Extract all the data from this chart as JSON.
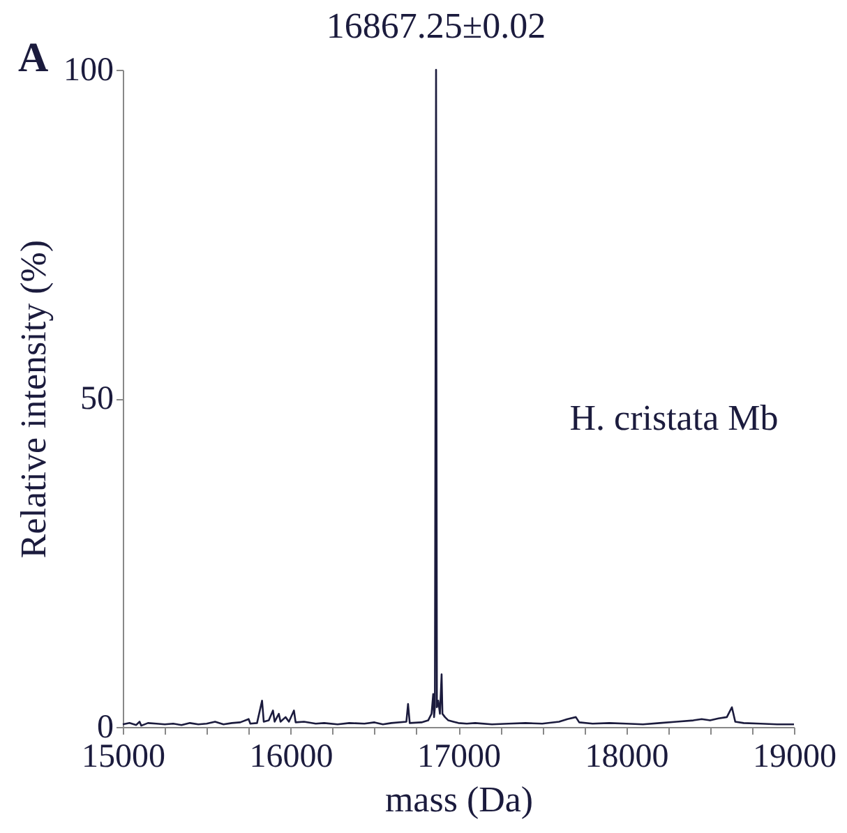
{
  "chart_data": {
    "type": "line",
    "xlabel": "mass (Da)",
    "ylabel": "Relative intensity (%)",
    "x": [
      15000,
      15040,
      15080,
      15100,
      15110,
      15150,
      15200,
      15250,
      15300,
      15350,
      15400,
      15450,
      15500,
      15550,
      15600,
      15650,
      15700,
      15750,
      15760,
      15800,
      15830,
      15840,
      15870,
      15895,
      15905,
      15930,
      15940,
      15970,
      15990,
      16020,
      16030,
      16080,
      16150,
      16200,
      16280,
      16350,
      16440,
      16500,
      16550,
      16600,
      16690,
      16700,
      16710,
      16780,
      16820,
      16840,
      16850,
      16855,
      16860,
      16867,
      16872,
      16880,
      16890,
      16900,
      16905,
      16920,
      16940,
      16970,
      17000,
      17050,
      17100,
      17200,
      17300,
      17400,
      17500,
      17600,
      17650,
      17700,
      17720,
      17800,
      17900,
      18000,
      18100,
      18200,
      18300,
      18400,
      18450,
      18500,
      18550,
      18600,
      18630,
      18650,
      18700,
      18800,
      18900,
      19000
    ],
    "series": [
      {
        "color": "#1b1b3d",
        "values": [
          0.4,
          0.6,
          0.3,
          0.8,
          0.2,
          0.6,
          0.5,
          0.4,
          0.5,
          0.3,
          0.6,
          0.4,
          0.5,
          0.8,
          0.4,
          0.6,
          0.7,
          1.2,
          0.5,
          0.6,
          4,
          0.8,
          1,
          2.5,
          0.8,
          2,
          0.8,
          1.5,
          0.8,
          2.5,
          0.7,
          0.8,
          0.5,
          0.6,
          0.4,
          0.6,
          0.5,
          0.7,
          0.4,
          0.6,
          0.8,
          3.5,
          0.6,
          0.7,
          1,
          2,
          5,
          1.5,
          3,
          100,
          3,
          4,
          2,
          8,
          2,
          1.5,
          1,
          0.8,
          0.6,
          0.5,
          0.6,
          0.4,
          0.5,
          0.6,
          0.5,
          0.8,
          1.2,
          1.5,
          0.7,
          0.5,
          0.6,
          0.5,
          0.4,
          0.6,
          0.8,
          1,
          1.2,
          1,
          1.3,
          1.5,
          3,
          0.8,
          0.6,
          0.5,
          0.4,
          0.4
        ]
      }
    ],
    "xlim": [
      15000,
      19000
    ],
    "xticks": [
      15000,
      {
        "value": 15250,
        "label": null
      },
      {
        "value": 15500,
        "label": null
      },
      {
        "value": 15750,
        "label": null
      },
      16000,
      {
        "value": 16250,
        "label": null
      },
      {
        "value": 16500,
        "label": null
      },
      {
        "value": 16750,
        "label": null
      },
      17000,
      {
        "value": 17250,
        "label": null
      },
      {
        "value": 17500,
        "label": null
      },
      {
        "value": 17750,
        "label": null
      },
      18000,
      {
        "value": 18250,
        "label": null
      },
      {
        "value": 18500,
        "label": null
      },
      {
        "value": 18750,
        "label": null
      },
      19000
    ],
    "ylim": [
      0,
      100
    ],
    "yticks": [
      0,
      50,
      100
    ],
    "grid": false,
    "marker": "none",
    "line_style": "solid",
    "annotations": [
      {
        "text": "16867.25±0.02",
        "x": 16867.25,
        "y": 100
      },
      "H. cristata Mb",
      "A"
    ]
  }
}
